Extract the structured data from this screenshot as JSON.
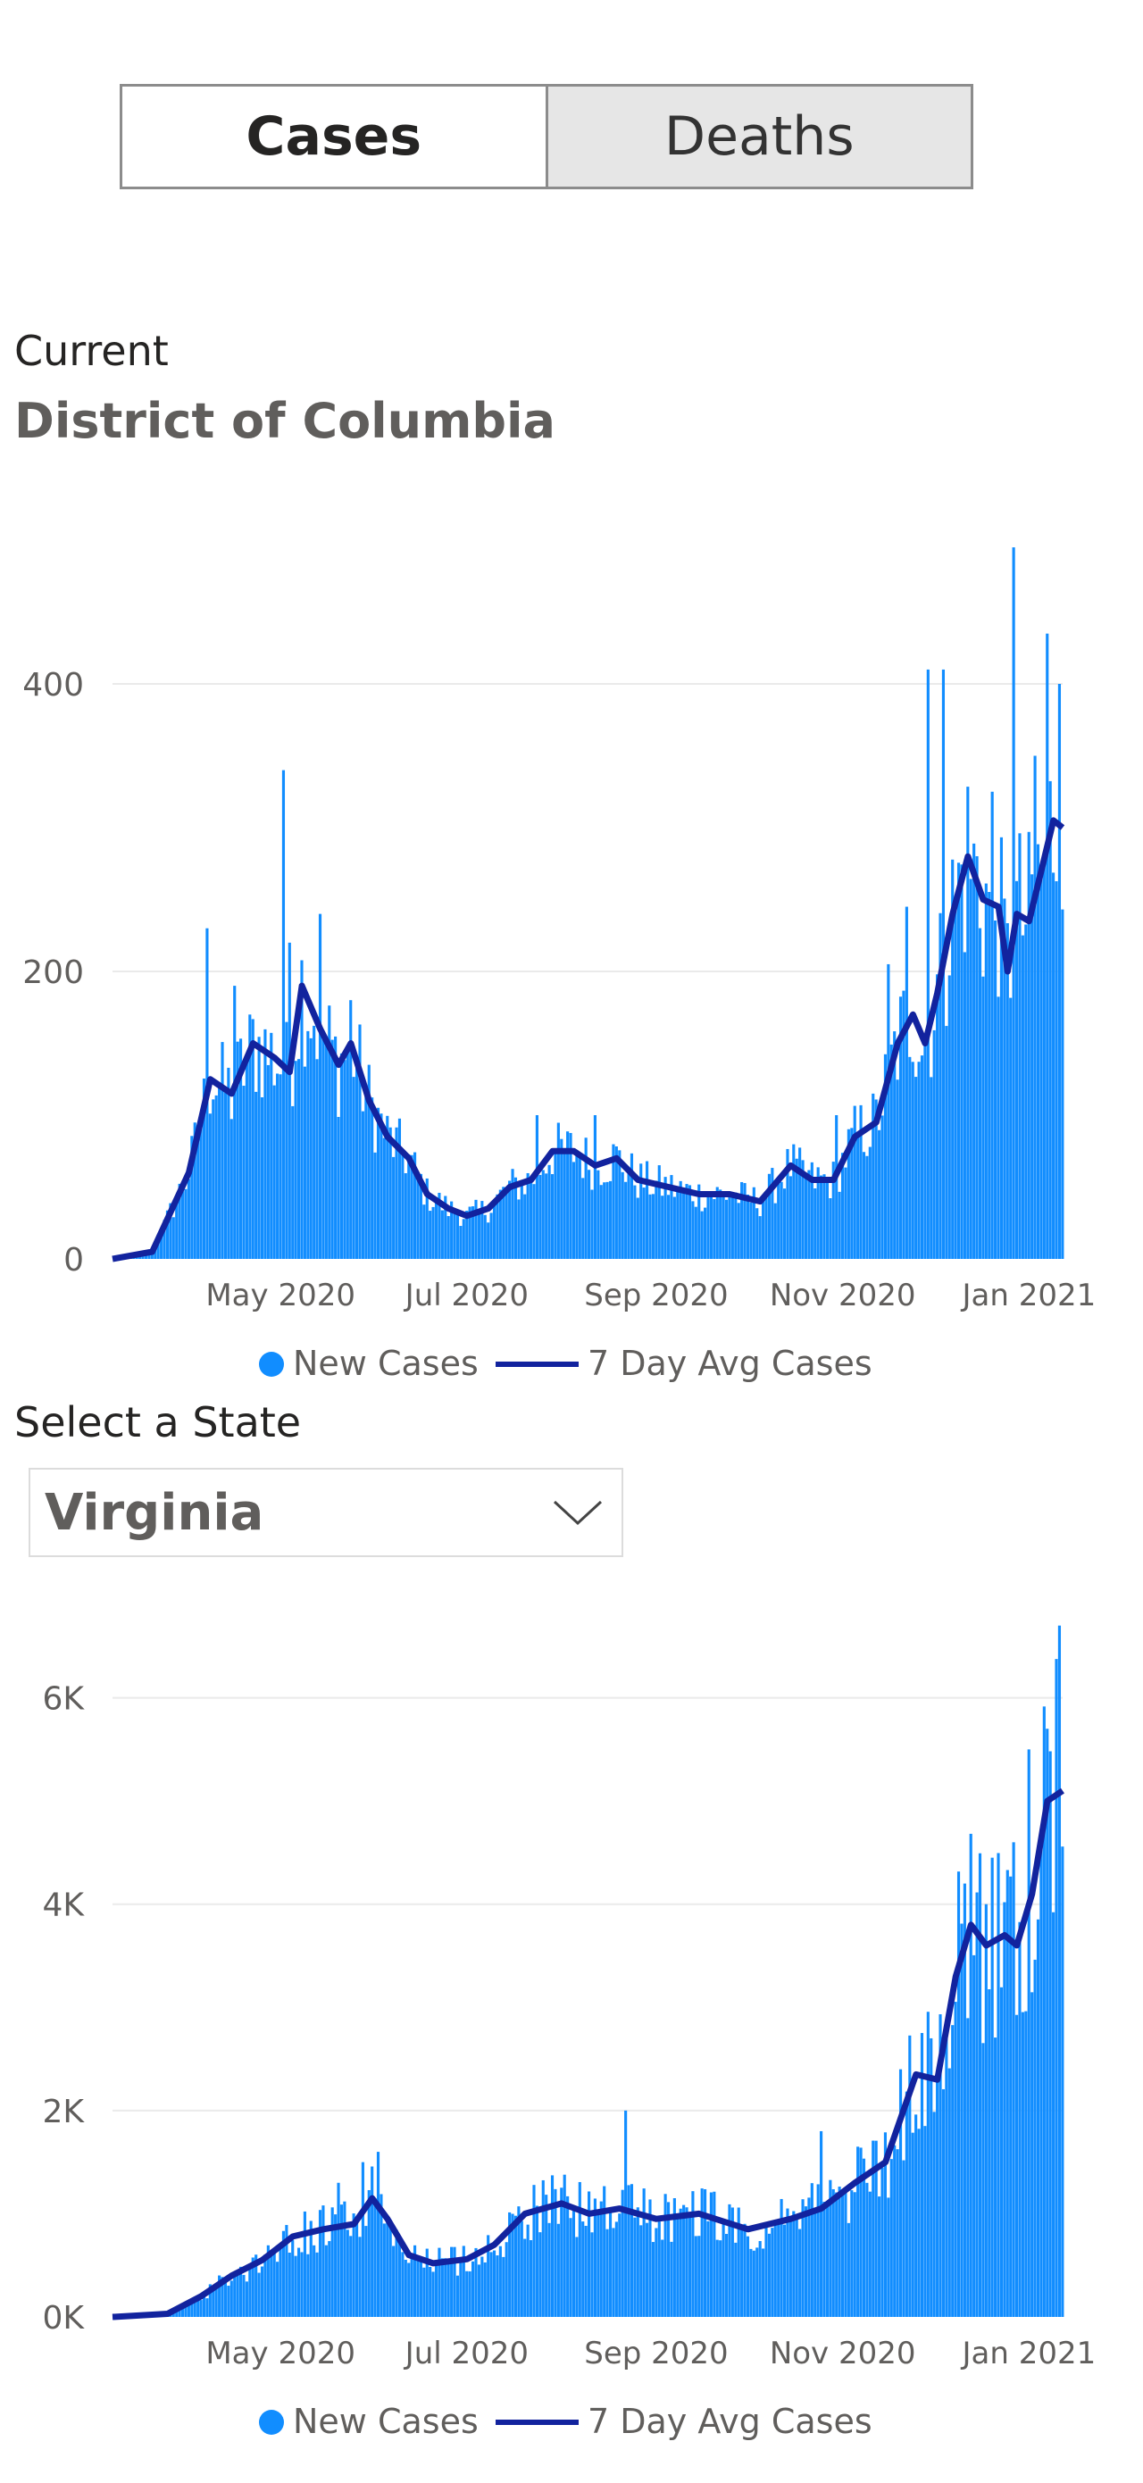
{
  "tabs": {
    "cases": "Cases",
    "deaths": "Deaths",
    "active": "cases"
  },
  "dc": {
    "caption": "Current",
    "region": "District of Columbia"
  },
  "state_select": {
    "label": "Select a State",
    "value": "Virginia"
  },
  "colors": {
    "bars": "#118dff",
    "line": "#12239e",
    "grid": "#eaeaea",
    "axis_text": "#605e5c"
  },
  "chart_data": [
    {
      "type": "bar",
      "id": "dc",
      "x_range": [
        "2020-03-07",
        "2021-01-12"
      ],
      "x_ticks": [
        {
          "date": "2020-05-01",
          "label": "May 2020"
        },
        {
          "date": "2020-07-01",
          "label": "Jul 2020"
        },
        {
          "date": "2020-09-01",
          "label": "Sep 2020"
        },
        {
          "date": "2020-11-01",
          "label": "Nov 2020"
        },
        {
          "date": "2021-01-01",
          "label": "Jan 2021"
        }
      ],
      "y_ticks": [
        {
          "v": 0,
          "label": "0"
        },
        {
          "v": 200,
          "label": "200"
        },
        {
          "v": 400,
          "label": "400"
        }
      ],
      "ylim": [
        0,
        500
      ],
      "legend": {
        "bars": "New Cases",
        "line": "7 Day Avg Cases"
      },
      "series_anchors": [
        {
          "date": "2020-03-07",
          "avg": 0
        },
        {
          "date": "2020-03-20",
          "avg": 5
        },
        {
          "date": "2020-04-01",
          "avg": 60
        },
        {
          "date": "2020-04-08",
          "avg": 125
        },
        {
          "date": "2020-04-15",
          "avg": 115
        },
        {
          "date": "2020-04-22",
          "avg": 150
        },
        {
          "date": "2020-04-29",
          "avg": 140
        },
        {
          "date": "2020-05-04",
          "avg": 130
        },
        {
          "date": "2020-05-08",
          "avg": 190
        },
        {
          "date": "2020-05-14",
          "avg": 160
        },
        {
          "date": "2020-05-20",
          "avg": 135
        },
        {
          "date": "2020-05-24",
          "avg": 150
        },
        {
          "date": "2020-05-30",
          "avg": 110
        },
        {
          "date": "2020-06-05",
          "avg": 85
        },
        {
          "date": "2020-06-12",
          "avg": 70
        },
        {
          "date": "2020-06-18",
          "avg": 45
        },
        {
          "date": "2020-06-25",
          "avg": 35
        },
        {
          "date": "2020-07-01",
          "avg": 30
        },
        {
          "date": "2020-07-08",
          "avg": 35
        },
        {
          "date": "2020-07-15",
          "avg": 50
        },
        {
          "date": "2020-07-22",
          "avg": 55
        },
        {
          "date": "2020-07-29",
          "avg": 75
        },
        {
          "date": "2020-08-05",
          "avg": 75
        },
        {
          "date": "2020-08-12",
          "avg": 65
        },
        {
          "date": "2020-08-19",
          "avg": 70
        },
        {
          "date": "2020-08-26",
          "avg": 55
        },
        {
          "date": "2020-09-05",
          "avg": 50
        },
        {
          "date": "2020-09-15",
          "avg": 45
        },
        {
          "date": "2020-09-25",
          "avg": 45
        },
        {
          "date": "2020-10-05",
          "avg": 40
        },
        {
          "date": "2020-10-15",
          "avg": 65
        },
        {
          "date": "2020-10-22",
          "avg": 55
        },
        {
          "date": "2020-10-29",
          "avg": 55
        },
        {
          "date": "2020-11-05",
          "avg": 85
        },
        {
          "date": "2020-11-12",
          "avg": 95
        },
        {
          "date": "2020-11-19",
          "avg": 150
        },
        {
          "date": "2020-11-24",
          "avg": 170
        },
        {
          "date": "2020-11-28",
          "avg": 150
        },
        {
          "date": "2020-12-02",
          "avg": 185
        },
        {
          "date": "2020-12-07",
          "avg": 240
        },
        {
          "date": "2020-12-12",
          "avg": 280
        },
        {
          "date": "2020-12-17",
          "avg": 250
        },
        {
          "date": "2020-12-22",
          "avg": 245
        },
        {
          "date": "2020-12-25",
          "avg": 200
        },
        {
          "date": "2020-12-28",
          "avg": 240
        },
        {
          "date": "2021-01-01",
          "avg": 235
        },
        {
          "date": "2021-01-05",
          "avg": 270
        },
        {
          "date": "2021-01-09",
          "avg": 305
        },
        {
          "date": "2021-01-12",
          "avg": 300
        }
      ],
      "bar_peaks": [
        {
          "date": "2020-04-07",
          "v": 230
        },
        {
          "date": "2020-04-16",
          "v": 190
        },
        {
          "date": "2020-04-21",
          "v": 170
        },
        {
          "date": "2020-05-02",
          "v": 340
        },
        {
          "date": "2020-05-04",
          "v": 220
        },
        {
          "date": "2020-05-14",
          "v": 240
        },
        {
          "date": "2020-05-24",
          "v": 180
        },
        {
          "date": "2020-07-24",
          "v": 100
        },
        {
          "date": "2020-08-12",
          "v": 100
        },
        {
          "date": "2020-10-30",
          "v": 100
        },
        {
          "date": "2020-11-16",
          "v": 205
        },
        {
          "date": "2020-11-22",
          "v": 245
        },
        {
          "date": "2020-11-29",
          "v": 410
        },
        {
          "date": "2020-12-04",
          "v": 410
        },
        {
          "date": "2020-12-20",
          "v": 325
        },
        {
          "date": "2020-12-27",
          "v": 495
        },
        {
          "date": "2021-01-03",
          "v": 350
        },
        {
          "date": "2021-01-07",
          "v": 435
        },
        {
          "date": "2021-01-11",
          "v": 400
        }
      ]
    },
    {
      "type": "bar",
      "id": "va",
      "x_range": [
        "2020-03-07",
        "2021-01-12"
      ],
      "x_ticks": [
        {
          "date": "2020-05-01",
          "label": "May 2020"
        },
        {
          "date": "2020-07-01",
          "label": "Jul 2020"
        },
        {
          "date": "2020-09-01",
          "label": "Sep 2020"
        },
        {
          "date": "2020-11-01",
          "label": "Nov 2020"
        },
        {
          "date": "2021-01-01",
          "label": "Jan 2021"
        }
      ],
      "y_ticks": [
        {
          "v": 0,
          "label": "0K"
        },
        {
          "v": 2000,
          "label": "2K"
        },
        {
          "v": 4000,
          "label": "4K"
        },
        {
          "v": 6000,
          "label": "6K"
        }
      ],
      "ylim": [
        0,
        7000
      ],
      "legend": {
        "bars": "New Cases",
        "line": "7 Day Avg Cases"
      },
      "series_anchors": [
        {
          "date": "2020-03-07",
          "avg": 0
        },
        {
          "date": "2020-03-25",
          "avg": 30
        },
        {
          "date": "2020-04-05",
          "avg": 200
        },
        {
          "date": "2020-04-15",
          "avg": 400
        },
        {
          "date": "2020-04-25",
          "avg": 550
        },
        {
          "date": "2020-05-05",
          "avg": 780
        },
        {
          "date": "2020-05-15",
          "avg": 850
        },
        {
          "date": "2020-05-25",
          "avg": 900
        },
        {
          "date": "2020-05-31",
          "avg": 1150
        },
        {
          "date": "2020-06-05",
          "avg": 950
        },
        {
          "date": "2020-06-12",
          "avg": 600
        },
        {
          "date": "2020-06-20",
          "avg": 520
        },
        {
          "date": "2020-07-01",
          "avg": 560
        },
        {
          "date": "2020-07-10",
          "avg": 700
        },
        {
          "date": "2020-07-20",
          "avg": 1000
        },
        {
          "date": "2020-08-01",
          "avg": 1100
        },
        {
          "date": "2020-08-10",
          "avg": 1000
        },
        {
          "date": "2020-08-20",
          "avg": 1050
        },
        {
          "date": "2020-09-01",
          "avg": 950
        },
        {
          "date": "2020-09-15",
          "avg": 1000
        },
        {
          "date": "2020-10-01",
          "avg": 850
        },
        {
          "date": "2020-10-15",
          "avg": 950
        },
        {
          "date": "2020-10-25",
          "avg": 1050
        },
        {
          "date": "2020-11-05",
          "avg": 1300
        },
        {
          "date": "2020-11-15",
          "avg": 1500
        },
        {
          "date": "2020-11-25",
          "avg": 2350
        },
        {
          "date": "2020-12-02",
          "avg": 2300
        },
        {
          "date": "2020-12-08",
          "avg": 3300
        },
        {
          "date": "2020-12-13",
          "avg": 3800
        },
        {
          "date": "2020-12-18",
          "avg": 3600
        },
        {
          "date": "2020-12-24",
          "avg": 3700
        },
        {
          "date": "2020-12-28",
          "avg": 3600
        },
        {
          "date": "2021-01-02",
          "avg": 4100
        },
        {
          "date": "2021-01-07",
          "avg": 5000
        },
        {
          "date": "2021-01-12",
          "avg": 5100
        }
      ],
      "bar_peaks": [
        {
          "date": "2020-05-20",
          "v": 1300
        },
        {
          "date": "2020-05-28",
          "v": 1500
        },
        {
          "date": "2020-06-02",
          "v": 1600
        },
        {
          "date": "2020-08-22",
          "v": 2000
        },
        {
          "date": "2020-10-25",
          "v": 1800
        },
        {
          "date": "2020-11-20",
          "v": 2400
        },
        {
          "date": "2020-11-30",
          "v": 2700
        },
        {
          "date": "2020-12-11",
          "v": 4200
        },
        {
          "date": "2020-12-18",
          "v": 4000
        },
        {
          "date": "2020-12-27",
          "v": 4600
        },
        {
          "date": "2021-01-01",
          "v": 5500
        },
        {
          "date": "2021-01-07",
          "v": 5700
        },
        {
          "date": "2021-01-11",
          "v": 6700
        }
      ]
    }
  ]
}
